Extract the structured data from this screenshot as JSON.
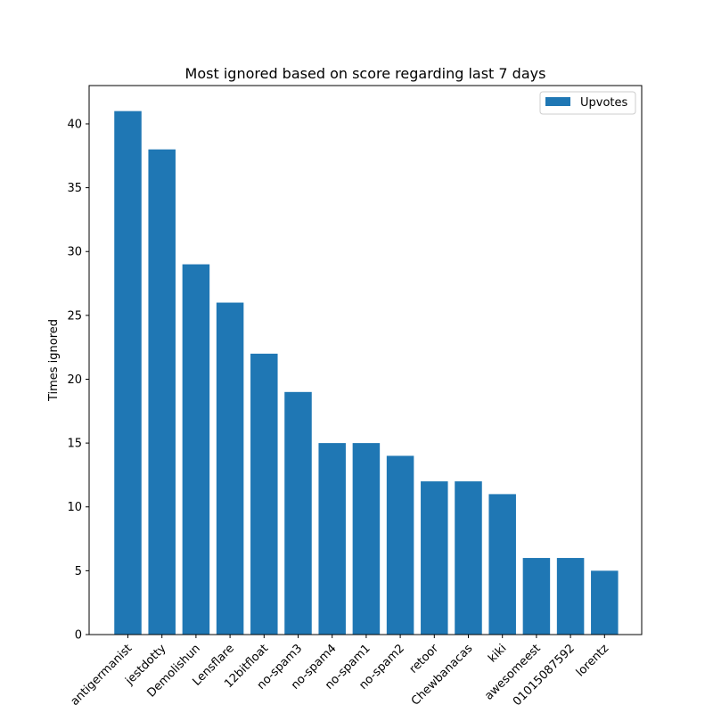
{
  "chart_data": {
    "type": "bar",
    "title": "Most ignored based on score regarding last 7 days",
    "xlabel": "",
    "ylabel": "Times ignored",
    "categories": [
      "antigermanist",
      "jestdotty",
      "Demolishun",
      "Lensflare",
      "12bitfloat",
      "no-spam3",
      "no-spam4",
      "no-spam1",
      "no-spam2",
      "retoor",
      "Chewbanacas",
      "kiki",
      "awesomeest",
      "01015087592",
      "lorentz"
    ],
    "series": [
      {
        "name": "Upvotes",
        "values": [
          41,
          38,
          29,
          26,
          22,
          19,
          15,
          15,
          14,
          12,
          12,
          11,
          6,
          6,
          5
        ]
      }
    ],
    "ylim": [
      0,
      43
    ],
    "yticks": [
      0,
      5,
      10,
      15,
      20,
      25,
      30,
      35,
      40
    ],
    "legend_position": "top-right",
    "grid": false,
    "colors": {
      "bar": "#1f77b4"
    }
  }
}
